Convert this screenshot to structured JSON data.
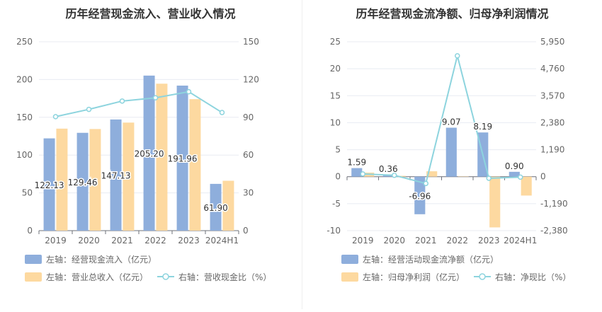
{
  "colors": {
    "blue": "#8eaedc",
    "orange": "#fdd9a0",
    "line": "#8dd4de",
    "axis_text": "#666666",
    "grid": "#e8ebf2",
    "legend_text": "#666666"
  },
  "chart_data": [
    {
      "type": "bar",
      "title": "历年经营现金流入、营业收入情况",
      "categories": [
        "2019",
        "2020",
        "2021",
        "2022",
        "2023",
        "2024H1"
      ],
      "ylim_left": [
        0,
        250
      ],
      "yticks_left": [
        0,
        50,
        100,
        150,
        200,
        250
      ],
      "ylim_right": [
        0,
        150
      ],
      "yticks_right": [
        0,
        30,
        60,
        90,
        120,
        150
      ],
      "series": [
        {
          "name": "左轴：经营现金流入（亿元）",
          "axis": "left",
          "kind": "bar",
          "color": "#8eaedc",
          "values": [
            122.13,
            129.46,
            147.13,
            205.2,
            191.96,
            61.9
          ],
          "labels": [
            "122.13",
            "129.46",
            "147.13",
            "205.20",
            "191.96",
            "61.90"
          ]
        },
        {
          "name": "左轴：营业总收入（亿元）",
          "axis": "left",
          "kind": "bar",
          "color": "#fdd9a0",
          "values": [
            135,
            134.5,
            143,
            194.5,
            174,
            66
          ]
        },
        {
          "name": "右轴：营收现金比（%）",
          "axis": "right",
          "kind": "line",
          "color": "#8dd4de",
          "values": [
            90.5,
            96.3,
            102.9,
            105.5,
            110.3,
            93.8
          ]
        }
      ],
      "legend": "bottom",
      "grid": true
    },
    {
      "type": "bar",
      "title": "历年经营现金流净额、归母净利润情况",
      "categories": [
        "2019",
        "2020",
        "2021",
        "2022",
        "2023",
        "2024H1"
      ],
      "ylim_left": [
        -10,
        25
      ],
      "yticks_left": [
        -10,
        -5,
        0,
        5,
        10,
        15,
        20,
        25
      ],
      "ylim_right": [
        -2380,
        5950
      ],
      "yticks_right": [
        -2380,
        -1190,
        0,
        1190,
        2380,
        3570,
        4760,
        5950
      ],
      "yticks_right_labels": [
        "-2,380",
        "-1,190",
        "0",
        "1,190",
        "2,380",
        "3,570",
        "4,760",
        "5,950"
      ],
      "series": [
        {
          "name": "左轴：经营活动现金流净额（亿元）",
          "axis": "left",
          "kind": "bar",
          "color": "#8eaedc",
          "values": [
            1.59,
            0.36,
            -6.96,
            9.07,
            8.19,
            0.9
          ],
          "labels": [
            "1.59",
            "0.36",
            "-6.96",
            "9.07",
            "8.19",
            "0.90"
          ]
        },
        {
          "name": "左轴：归母净利润（亿元）",
          "axis": "left",
          "kind": "bar",
          "color": "#fdd9a0",
          "values": [
            0.75,
            0.15,
            1.0,
            0.05,
            -9.4,
            -3.5
          ]
        },
        {
          "name": "右轴：净现比（%）",
          "axis": "right",
          "kind": "line",
          "color": "#8dd4de",
          "values": [
            120,
            60,
            -300,
            5330,
            -70,
            -20
          ]
        }
      ],
      "legend": "bottom",
      "grid": true
    }
  ]
}
